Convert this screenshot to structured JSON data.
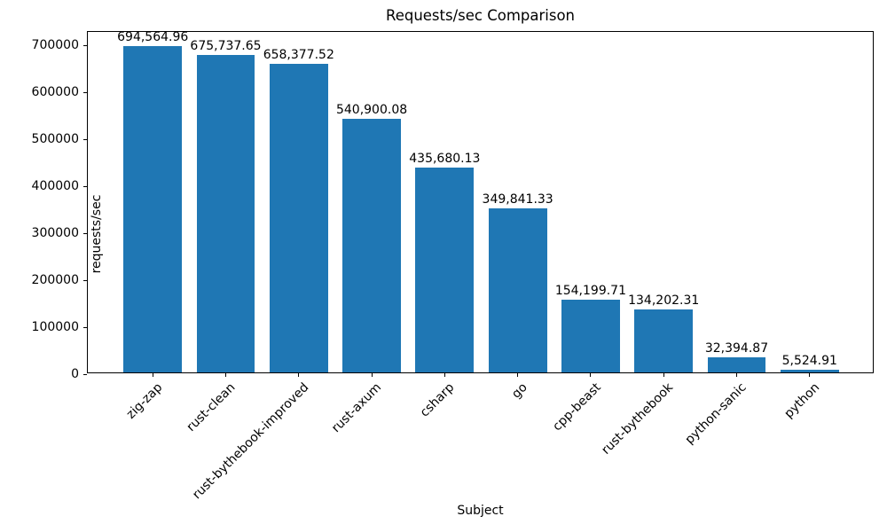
{
  "figure": {
    "background": "#ffffff",
    "text_color": "#000000",
    "spine_color": "#000000"
  },
  "chart_data": {
    "type": "bar",
    "title": "Requests/sec Comparison",
    "xlabel": "Subject",
    "ylabel": "requests/sec",
    "categories": [
      "zig-zap",
      "rust-clean",
      "rust-bythebook-improved",
      "rust-axum",
      "csharp",
      "go",
      "cpp-beast",
      "rust-bythebook",
      "python-sanic",
      "python"
    ],
    "values": [
      694564.96,
      675737.65,
      658377.52,
      540900.08,
      435680.13,
      349841.33,
      154199.71,
      134202.31,
      32394.87,
      5524.91
    ],
    "value_labels": [
      "694,564.96",
      "675,737.65",
      "658,377.52",
      "540,900.08",
      "435,680.13",
      "349,841.33",
      "154,199.71",
      "134,202.31",
      "32,394.87",
      "5,524.91"
    ],
    "bar_color": "#1f77b4",
    "ylim": [
      0,
      729300
    ],
    "yticks": [
      0,
      100000,
      200000,
      300000,
      400000,
      500000,
      600000,
      700000
    ],
    "ytick_labels": [
      "0",
      "100000",
      "200000",
      "300000",
      "400000",
      "500000",
      "600000",
      "700000"
    ],
    "xtick_rotation_deg": 45,
    "grid": false,
    "legend": "none",
    "bar_width_fraction": 0.8,
    "x_margin_fraction": 0.05
  }
}
